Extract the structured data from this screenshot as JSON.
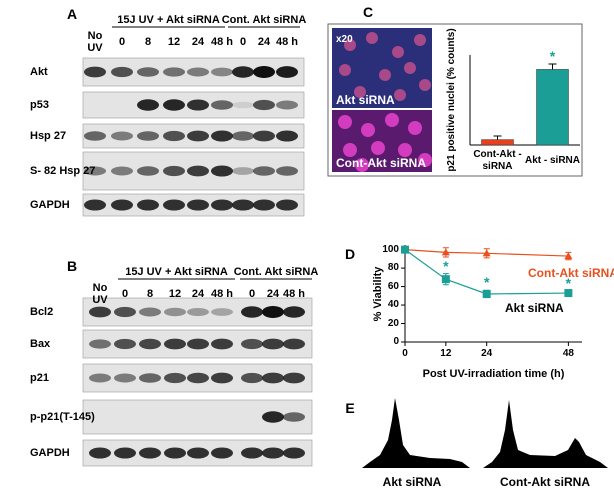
{
  "panels": {
    "A": {
      "label": "A",
      "groups": [
        "15J UV + Akt siRNA",
        "Cont. Akt siRNA"
      ],
      "lanes": [
        "No UV",
        "0",
        "8",
        "12",
        "24",
        "48 h",
        "0",
        "24",
        "48 h"
      ],
      "rows": [
        "Akt",
        "p53",
        "Hsp 27",
        "S- 82 Hsp 27",
        "GAPDH"
      ]
    },
    "B": {
      "label": "B",
      "groups": [
        "15J UV + Akt siRNA",
        "Cont. Akt siRNA"
      ],
      "lanes": [
        "No UV",
        "0",
        "8",
        "12",
        "24",
        "48 h",
        "0",
        "24",
        "48 h"
      ],
      "rows": [
        "Bcl2",
        "Bax",
        "p21",
        "p-p21(T-145)",
        "GAPDH"
      ]
    },
    "C": {
      "label": "C",
      "image_labels": [
        "x20",
        "Akt siRNA",
        "Cont-Akt siRNA"
      ]
    },
    "D": {
      "label": "D"
    },
    "E": {
      "label": "E",
      "labels": [
        "Akt siRNA",
        "Cont-Akt siRNA"
      ]
    }
  },
  "chart_data": [
    {
      "type": "bar",
      "y_label": "p21 positive nuclei (% counts)",
      "categories": [
        "Cont-Akt - siRNA",
        "Akt - siRNA"
      ],
      "values": [
        3,
        42
      ],
      "errors": [
        2,
        3
      ],
      "colors": [
        "#e8401c",
        "#1a9e96"
      ],
      "ylim": [
        0,
        50
      ],
      "annotations": [
        {
          "text": "*",
          "category": 1
        }
      ]
    },
    {
      "type": "line",
      "x_label": "Post UV-irradiation time (h)",
      "y_label": "% Viability",
      "x": [
        0,
        12,
        24,
        48
      ],
      "xlim": [
        0,
        52
      ],
      "xticks": [
        0,
        12,
        24,
        48
      ],
      "ylim": [
        0,
        105
      ],
      "yticks": [
        0,
        20,
        40,
        60,
        80,
        100
      ],
      "series": [
        {
          "name": "Cont-Akt siRNA",
          "color": "#e8501e",
          "marker": "triangle",
          "values": [
            100,
            97,
            96,
            93
          ],
          "errors": [
            0,
            5,
            5,
            4
          ]
        },
        {
          "name": "Akt siRNA",
          "color": "#1a9e96",
          "marker": "square",
          "values": [
            100,
            68,
            52,
            53
          ],
          "errors": [
            0,
            6,
            4,
            2
          ],
          "annotations": [
            {
              "text": "*",
              "x": 12
            },
            {
              "text": "*",
              "x": 24
            },
            {
              "text": "*",
              "x": 48
            }
          ]
        }
      ]
    }
  ]
}
